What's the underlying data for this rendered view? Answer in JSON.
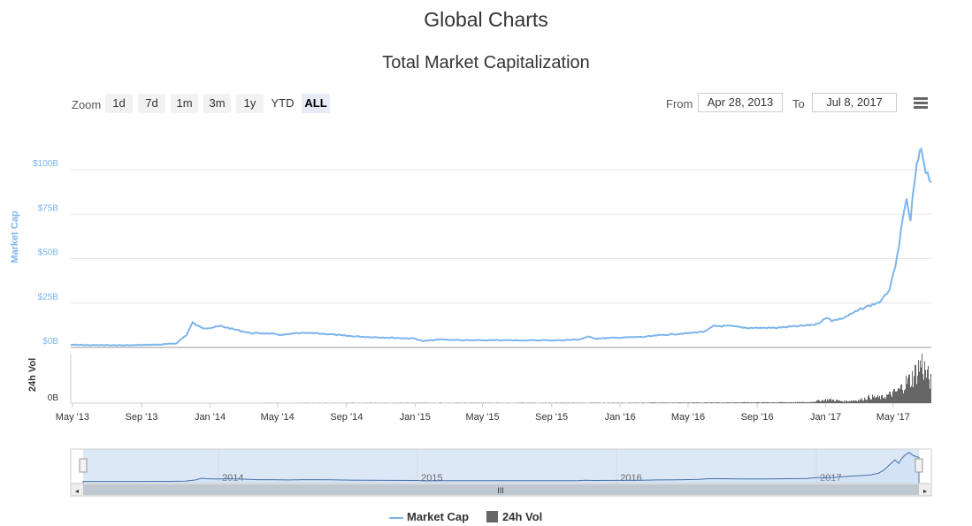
{
  "page": {
    "title": "Global Charts"
  },
  "toolbar": {
    "zoom_label": "Zoom",
    "zoom_buttons": [
      "1d",
      "7d",
      "1m",
      "3m",
      "1y",
      "YTD",
      "ALL"
    ],
    "active_zoom": "ALL",
    "from_label": "From",
    "from_value": "Apr 28, 2013",
    "to_label": "To",
    "to_value": "Jul 8, 2017"
  },
  "colors": {
    "market_cap": "#7cb5ec",
    "volume": "#666666"
  },
  "chart_data": {
    "type": "line",
    "title": "Total Market Capitalization",
    "x_ticks": [
      "May '13",
      "Sep '13",
      "Jan '14",
      "May '14",
      "Sep '14",
      "Jan '15",
      "May '15",
      "Sep '15",
      "Jan '16",
      "May '16",
      "Sep '16",
      "Jan '17",
      "May '17"
    ],
    "x_range": [
      "2013-04-28",
      "2017-07-08"
    ],
    "navigator_labels": [
      "2014",
      "2015",
      "2016",
      "2017"
    ],
    "series": [
      {
        "name": "Market Cap",
        "ylabel": "Market Cap",
        "y_ticks": [
          "$0B",
          "$25B",
          "$50B",
          "$75B",
          "$100B"
        ],
        "ylim": [
          0,
          100
        ],
        "unit": "billion USD",
        "x": [
          "2013-04-28",
          "2013-06-01",
          "2013-08-01",
          "2013-10-01",
          "2013-11-01",
          "2013-11-20",
          "2013-12-01",
          "2013-12-10",
          "2013-12-20",
          "2014-01-01",
          "2014-01-20",
          "2014-02-15",
          "2014-03-15",
          "2014-04-10",
          "2014-05-10",
          "2014-06-05",
          "2014-07-01",
          "2014-08-01",
          "2014-09-01",
          "2014-10-01",
          "2014-11-15",
          "2015-01-01",
          "2015-01-15",
          "2015-02-15",
          "2015-04-01",
          "2015-06-01",
          "2015-08-01",
          "2015-09-15",
          "2015-10-20",
          "2015-11-05",
          "2015-11-20",
          "2016-01-01",
          "2016-02-15",
          "2016-03-15",
          "2016-05-01",
          "2016-06-01",
          "2016-06-15",
          "2016-07-15",
          "2016-08-15",
          "2016-10-01",
          "2016-11-15",
          "2016-12-15",
          "2017-01-05",
          "2017-01-12",
          "2017-02-01",
          "2017-03-01",
          "2017-03-15",
          "2017-03-25",
          "2017-04-10",
          "2017-04-25",
          "2017-05-05",
          "2017-05-15",
          "2017-05-25",
          "2017-06-01",
          "2017-06-05",
          "2017-06-12",
          "2017-06-20",
          "2017-06-28",
          "2017-07-08"
        ],
        "values": [
          1.5,
          1.3,
          1.2,
          1.6,
          2.2,
          7,
          14,
          12,
          11,
          11,
          12,
          10,
          8,
          8,
          7,
          8,
          8,
          7.5,
          6.5,
          6,
          5.5,
          5,
          3.5,
          4.5,
          4,
          4,
          4,
          4,
          4.5,
          6,
          5,
          5.5,
          6,
          7,
          8,
          9,
          12,
          12,
          11,
          11,
          12,
          13,
          17,
          15,
          16.5,
          21,
          23,
          24,
          26,
          33,
          45,
          65,
          84,
          70,
          85,
          102,
          112,
          100,
          93
        ]
      },
      {
        "name": "24h Vol",
        "ylabel": "24h Vol",
        "y_ticks": [
          "0B"
        ],
        "ylim": [
          0,
          8
        ],
        "unit": "billion USD",
        "x": [
          "2013-04-28",
          "2015-12-01",
          "2016-06-01",
          "2016-12-01",
          "2017-01-05",
          "2017-02-01",
          "2017-03-01",
          "2017-03-20",
          "2017-04-10",
          "2017-04-25",
          "2017-05-10",
          "2017-05-25",
          "2017-06-01",
          "2017-06-10",
          "2017-06-20",
          "2017-06-30",
          "2017-07-08"
        ],
        "values": [
          0.02,
          0.05,
          0.1,
          0.15,
          0.6,
          0.3,
          0.5,
          1.0,
          0.9,
          1.4,
          2.0,
          3.5,
          3.8,
          5.0,
          6.5,
          4.5,
          3.2
        ]
      }
    ],
    "grid": true,
    "legend": "bottom-center"
  }
}
